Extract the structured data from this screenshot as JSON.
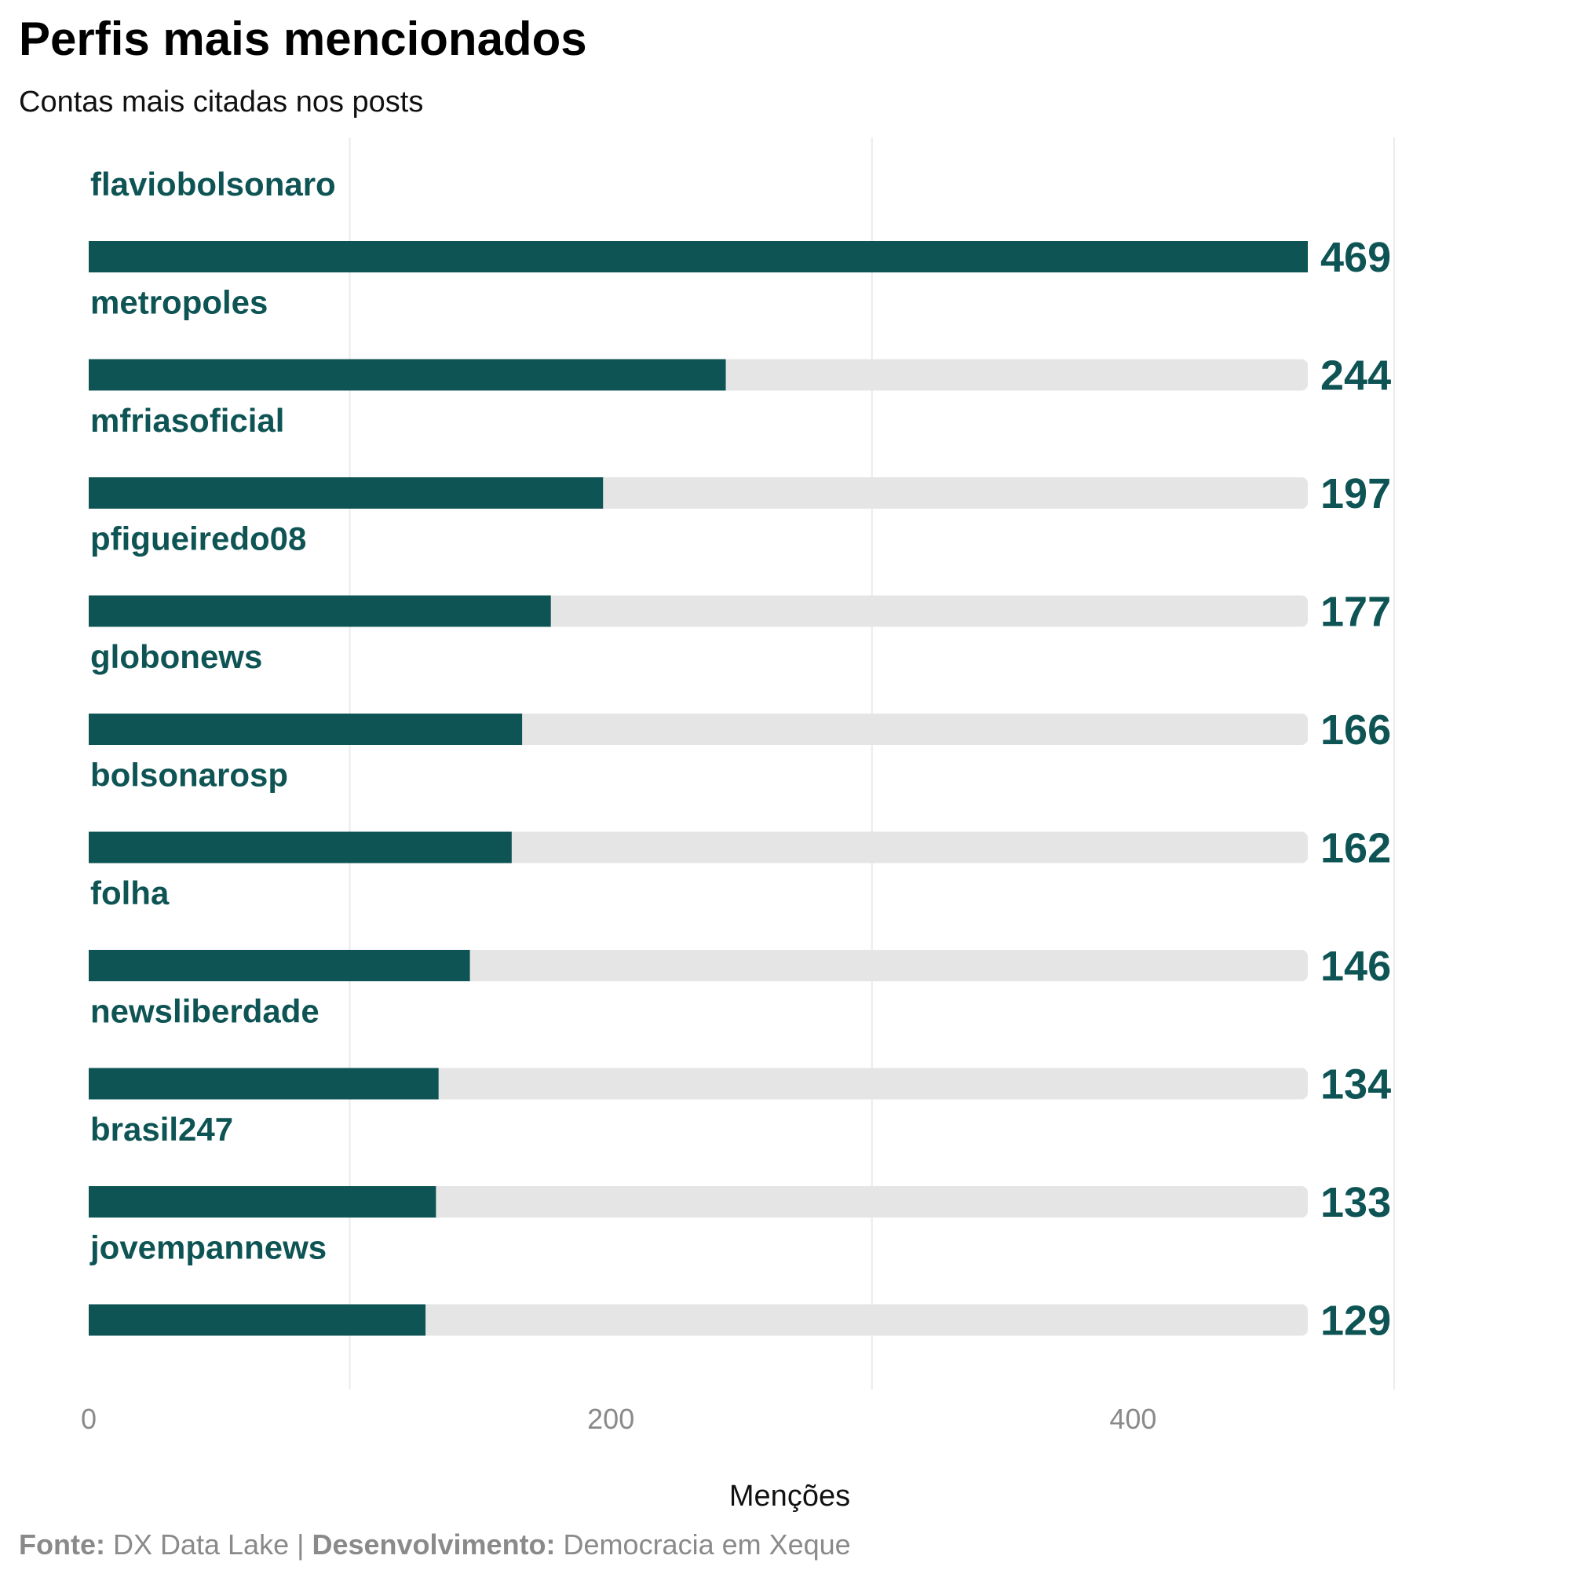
{
  "colors": {
    "bar": "#0f5454",
    "track": "#e5e5e5",
    "label": "#0f5454",
    "grid": "#ebebeb"
  },
  "chart_data": {
    "type": "bar",
    "orientation": "horizontal",
    "title": "Perfis mais mencionados",
    "subtitle": "Contas mais citadas nos posts",
    "xlabel": "Menções",
    "ylabel": "",
    "categories": [
      "flaviobolsonaro",
      "metropoles",
      "mfriasoficial",
      "pfigueiredo08",
      "globonews",
      "bolsonarosp",
      "folha",
      "newsliberdade",
      "brasil247",
      "jovempannews"
    ],
    "values": [
      469,
      244,
      197,
      177,
      166,
      162,
      146,
      134,
      133,
      129
    ],
    "value_labels": [
      "469",
      "244",
      "197",
      "177",
      "166",
      "162",
      "146",
      "134",
      "133",
      "129"
    ],
    "xlim": [
      0,
      500
    ],
    "x_ticks": [
      {
        "value": 0,
        "label": "0"
      },
      {
        "value": 200,
        "label": "200"
      },
      {
        "value": 400,
        "label": "400"
      }
    ],
    "minor_gridlines": [
      100,
      300,
      500
    ],
    "grid": true,
    "legend": "none",
    "caption": {
      "source_label": "Fonte:",
      "source_value": " DX Data Lake | ",
      "dev_label": "Desenvolvimento:",
      "dev_value": " Democracia em Xeque"
    }
  }
}
